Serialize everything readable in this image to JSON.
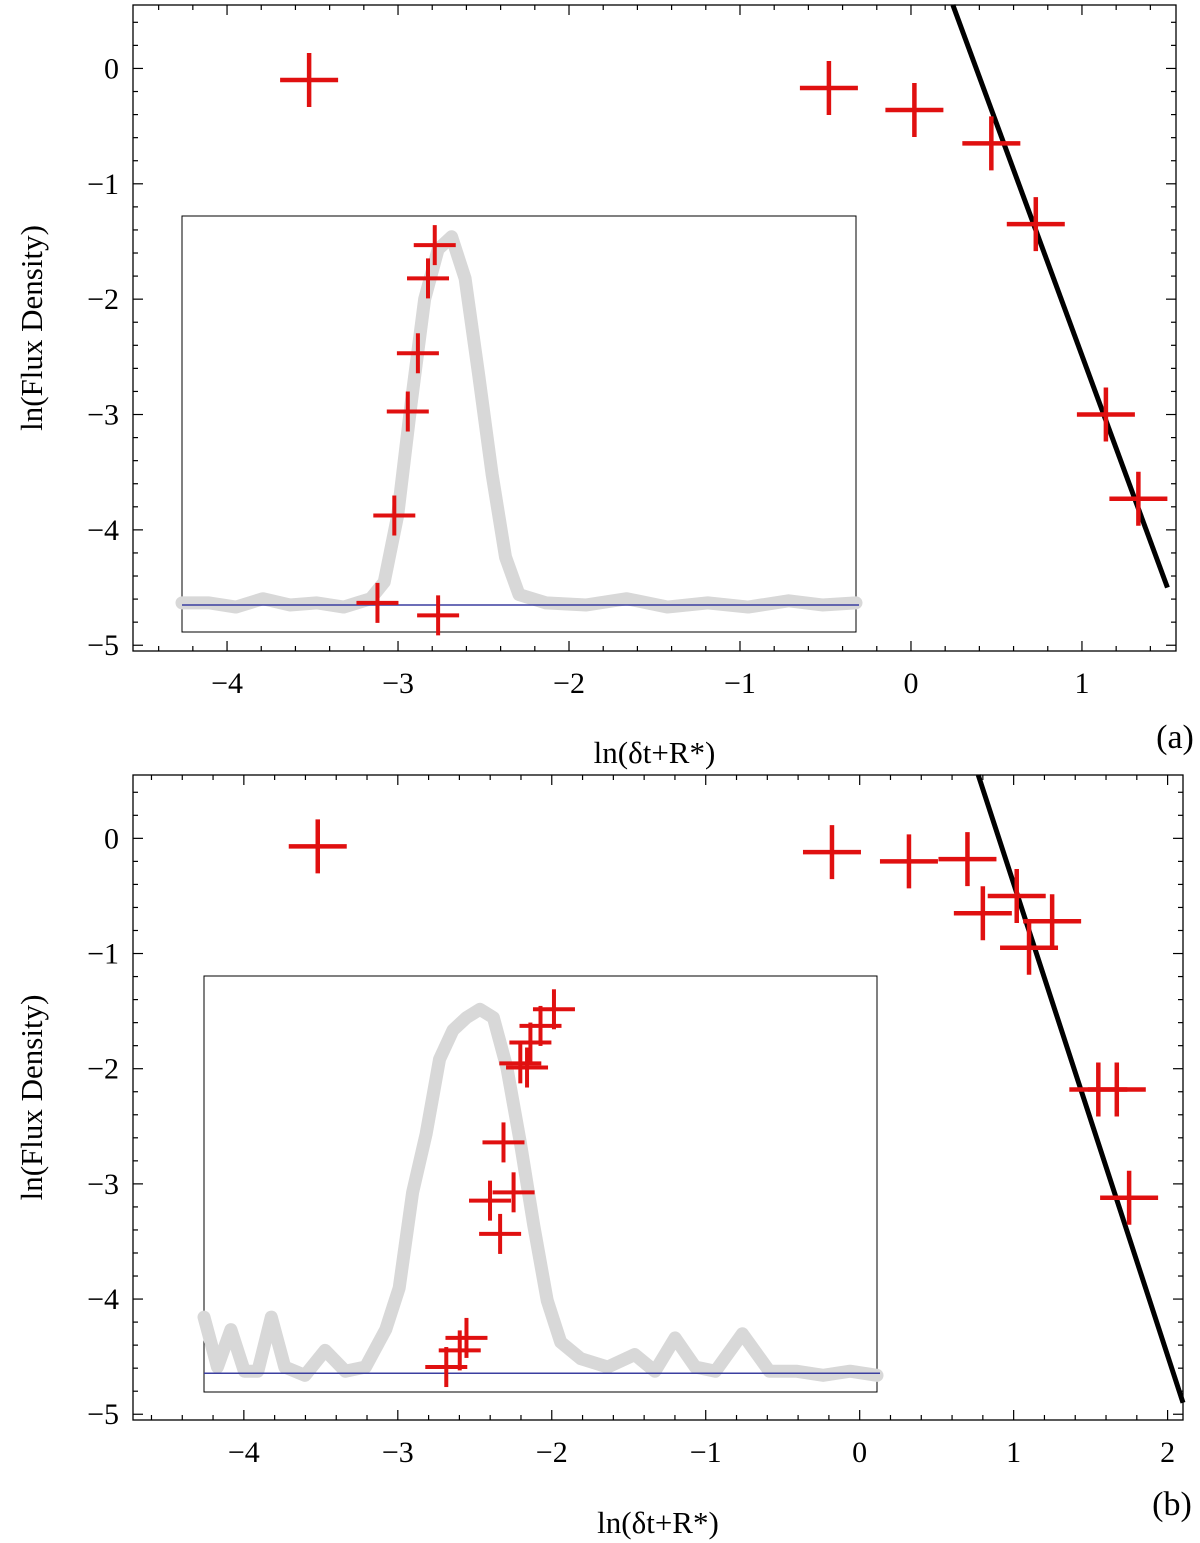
{
  "chart_data": [
    {
      "type": "scatter",
      "panel_label": "(a)",
      "xlabel": "ln(δt+R*)",
      "ylabel": "ln(Flux Density)",
      "xlim": [
        -4.55,
        1.55
      ],
      "ylim": [
        -5.05,
        0.55
      ],
      "xticks": [
        -4,
        -3,
        -2,
        -1,
        0,
        1
      ],
      "yticks": [
        0,
        -1,
        -2,
        -3,
        -4,
        -5
      ],
      "xtick_labels": [
        "−4",
        "−3",
        "−2",
        "−1",
        "0",
        "1"
      ],
      "ytick_labels": [
        "0",
        "−1",
        "−2",
        "−3",
        "−4",
        "−5"
      ],
      "points": [
        {
          "x": -3.52,
          "y": -0.1
        },
        {
          "x": -0.48,
          "y": -0.17
        },
        {
          "x": 0.02,
          "y": -0.36
        },
        {
          "x": 0.47,
          "y": -0.65
        },
        {
          "x": 0.73,
          "y": -1.35
        },
        {
          "x": 1.14,
          "y": -3.0
        },
        {
          "x": 1.33,
          "y": -3.73
        }
      ],
      "fit_line": {
        "x1": 0.245,
        "y1": 0.55,
        "x2": 1.5,
        "y2": -4.5
      },
      "inset": {
        "baseline": 0.065,
        "peak": [
          {
            "t": 0.0,
            "v": 0.07
          },
          {
            "t": 0.04,
            "v": 0.07
          },
          {
            "t": 0.08,
            "v": 0.06
          },
          {
            "t": 0.12,
            "v": 0.08
          },
          {
            "t": 0.16,
            "v": 0.065
          },
          {
            "t": 0.2,
            "v": 0.07
          },
          {
            "t": 0.24,
            "v": 0.06
          },
          {
            "t": 0.26,
            "v": 0.07
          },
          {
            "t": 0.28,
            "v": 0.08
          },
          {
            "t": 0.3,
            "v": 0.12
          },
          {
            "t": 0.32,
            "v": 0.28
          },
          {
            "t": 0.34,
            "v": 0.55
          },
          {
            "t": 0.36,
            "v": 0.8
          },
          {
            "t": 0.38,
            "v": 0.92
          },
          {
            "t": 0.4,
            "v": 0.95
          },
          {
            "t": 0.42,
            "v": 0.85
          },
          {
            "t": 0.44,
            "v": 0.62
          },
          {
            "t": 0.46,
            "v": 0.38
          },
          {
            "t": 0.48,
            "v": 0.18
          },
          {
            "t": 0.5,
            "v": 0.09
          },
          {
            "t": 0.54,
            "v": 0.07
          },
          {
            "t": 0.6,
            "v": 0.065
          },
          {
            "t": 0.66,
            "v": 0.08
          },
          {
            "t": 0.72,
            "v": 0.06
          },
          {
            "t": 0.78,
            "v": 0.07
          },
          {
            "t": 0.84,
            "v": 0.06
          },
          {
            "t": 0.9,
            "v": 0.075
          },
          {
            "t": 0.95,
            "v": 0.065
          },
          {
            "t": 1.0,
            "v": 0.07
          }
        ],
        "points": [
          {
            "t": 0.375,
            "v": 0.93
          },
          {
            "t": 0.365,
            "v": 0.85
          },
          {
            "t": 0.35,
            "v": 0.67
          },
          {
            "t": 0.335,
            "v": 0.53
          },
          {
            "t": 0.315,
            "v": 0.28
          },
          {
            "t": 0.29,
            "v": 0.07
          },
          {
            "t": 0.38,
            "v": 0.04
          }
        ]
      }
    },
    {
      "type": "scatter",
      "panel_label": "(b)",
      "xlabel": "ln(δt+R*)",
      "ylabel": "ln(Flux Density)",
      "xlim": [
        -4.72,
        2.1
      ],
      "ylim": [
        -5.05,
        0.55
      ],
      "xticks": [
        -4,
        -3,
        -2,
        -1,
        0,
        1,
        2
      ],
      "yticks": [
        0,
        -1,
        -2,
        -3,
        -4,
        -5
      ],
      "xtick_labels": [
        "−4",
        "−3",
        "−2",
        "−1",
        "0",
        "1",
        "2"
      ],
      "ytick_labels": [
        "0",
        "−1",
        "−2",
        "−3",
        "−4",
        "−5"
      ],
      "points": [
        {
          "x": -3.52,
          "y": -0.07
        },
        {
          "x": -0.18,
          "y": -0.12
        },
        {
          "x": 0.32,
          "y": -0.2
        },
        {
          "x": 0.7,
          "y": -0.18
        },
        {
          "x": 0.8,
          "y": -0.65
        },
        {
          "x": 1.02,
          "y": -0.5
        },
        {
          "x": 1.1,
          "y": -0.95
        },
        {
          "x": 1.25,
          "y": -0.72
        },
        {
          "x": 1.55,
          "y": -2.18
        },
        {
          "x": 1.67,
          "y": -2.18
        },
        {
          "x": 1.75,
          "y": -3.12
        }
      ],
      "fit_line": {
        "x1": 0.77,
        "y1": 0.55,
        "x2": 2.1,
        "y2": -4.9
      },
      "inset": {
        "baseline": 0.045,
        "peak": [
          {
            "t": 0.0,
            "v": 0.18
          },
          {
            "t": 0.02,
            "v": 0.06
          },
          {
            "t": 0.04,
            "v": 0.15
          },
          {
            "t": 0.06,
            "v": 0.05
          },
          {
            "t": 0.08,
            "v": 0.05
          },
          {
            "t": 0.1,
            "v": 0.18
          },
          {
            "t": 0.12,
            "v": 0.06
          },
          {
            "t": 0.15,
            "v": 0.04
          },
          {
            "t": 0.18,
            "v": 0.1
          },
          {
            "t": 0.21,
            "v": 0.05
          },
          {
            "t": 0.24,
            "v": 0.06
          },
          {
            "t": 0.27,
            "v": 0.15
          },
          {
            "t": 0.29,
            "v": 0.25
          },
          {
            "t": 0.31,
            "v": 0.48
          },
          {
            "t": 0.33,
            "v": 0.62
          },
          {
            "t": 0.35,
            "v": 0.8
          },
          {
            "t": 0.37,
            "v": 0.87
          },
          {
            "t": 0.39,
            "v": 0.9
          },
          {
            "t": 0.41,
            "v": 0.92
          },
          {
            "t": 0.43,
            "v": 0.9
          },
          {
            "t": 0.45,
            "v": 0.78
          },
          {
            "t": 0.47,
            "v": 0.6
          },
          {
            "t": 0.49,
            "v": 0.4
          },
          {
            "t": 0.51,
            "v": 0.22
          },
          {
            "t": 0.53,
            "v": 0.12
          },
          {
            "t": 0.56,
            "v": 0.08
          },
          {
            "t": 0.6,
            "v": 0.06
          },
          {
            "t": 0.64,
            "v": 0.09
          },
          {
            "t": 0.67,
            "v": 0.05
          },
          {
            "t": 0.7,
            "v": 0.13
          },
          {
            "t": 0.73,
            "v": 0.06
          },
          {
            "t": 0.76,
            "v": 0.05
          },
          {
            "t": 0.8,
            "v": 0.14
          },
          {
            "t": 0.84,
            "v": 0.05
          },
          {
            "t": 0.88,
            "v": 0.05
          },
          {
            "t": 0.92,
            "v": 0.04
          },
          {
            "t": 0.96,
            "v": 0.05
          },
          {
            "t": 1.0,
            "v": 0.04
          }
        ],
        "points": [
          {
            "t": 0.52,
            "v": 0.92
          },
          {
            "t": 0.5,
            "v": 0.88
          },
          {
            "t": 0.485,
            "v": 0.84
          },
          {
            "t": 0.47,
            "v": 0.79
          },
          {
            "t": 0.48,
            "v": 0.78
          },
          {
            "t": 0.445,
            "v": 0.6
          },
          {
            "t": 0.46,
            "v": 0.48
          },
          {
            "t": 0.425,
            "v": 0.46
          },
          {
            "t": 0.44,
            "v": 0.38
          },
          {
            "t": 0.39,
            "v": 0.13
          },
          {
            "t": 0.38,
            "v": 0.1
          },
          {
            "t": 0.36,
            "v": 0.06
          }
        ]
      }
    }
  ]
}
